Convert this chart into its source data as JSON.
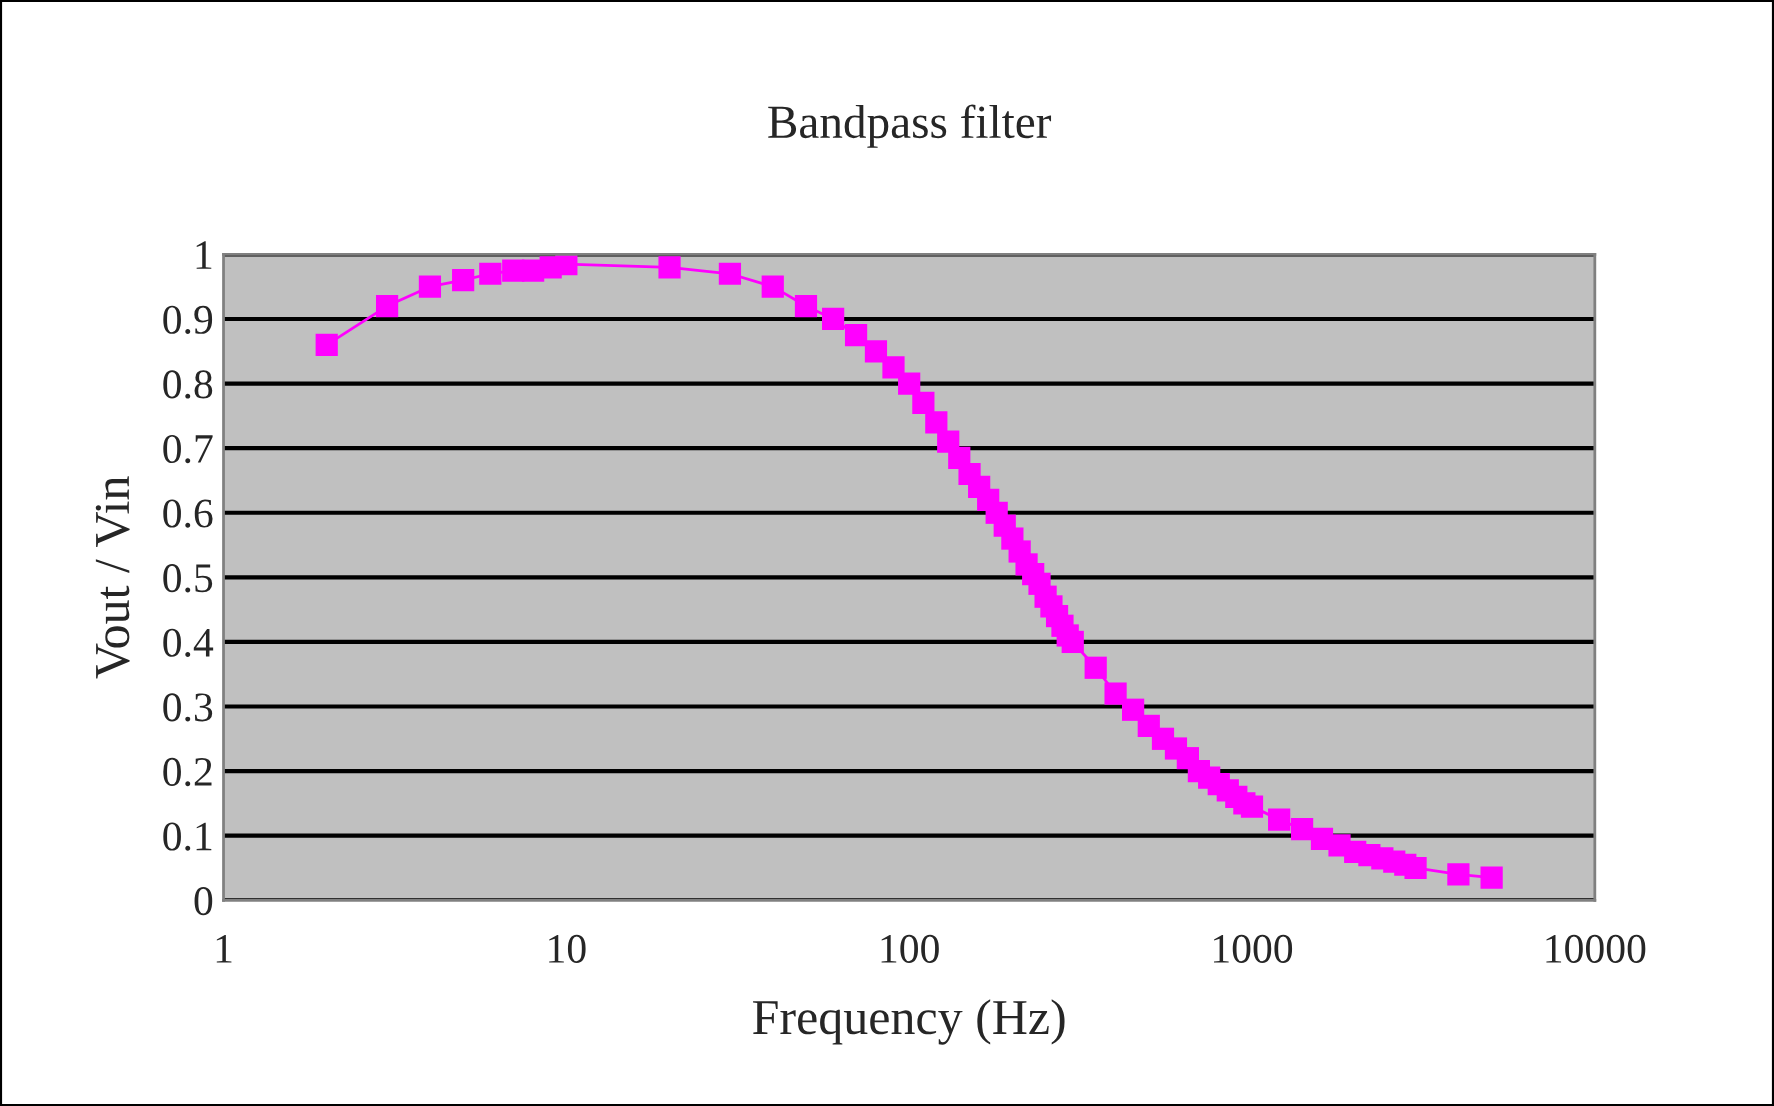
{
  "chart_data": {
    "type": "line",
    "title": "Bandpass filter",
    "xlabel": "Frequency (Hz)",
    "ylabel": "Vout / Vin",
    "x": [
      2,
      3,
      4,
      5,
      6,
      7,
      8,
      9,
      10,
      20,
      30,
      40,
      50,
      60,
      70,
      80,
      90,
      100,
      110,
      120,
      130,
      140,
      150,
      160,
      170,
      180,
      190,
      200,
      210,
      220,
      230,
      240,
      250,
      260,
      270,
      280,
      290,
      300,
      350,
      400,
      450,
      500,
      550,
      600,
      650,
      700,
      750,
      800,
      850,
      900,
      950,
      1000,
      1200,
      1400,
      1600,
      1800,
      2000,
      2200,
      2400,
      2600,
      2800,
      3000,
      4000,
      5000
    ],
    "series": [
      {
        "color": "#ff00ff",
        "values": [
          0.86,
          0.92,
          0.95,
          0.96,
          0.97,
          0.975,
          0.975,
          0.98,
          0.985,
          0.98,
          0.97,
          0.95,
          0.92,
          0.9,
          0.875,
          0.85,
          0.825,
          0.8,
          0.77,
          0.74,
          0.71,
          0.685,
          0.66,
          0.64,
          0.62,
          0.6,
          0.58,
          0.56,
          0.54,
          0.52,
          0.505,
          0.49,
          0.47,
          0.455,
          0.44,
          0.425,
          0.41,
          0.4,
          0.36,
          0.32,
          0.295,
          0.27,
          0.25,
          0.235,
          0.22,
          0.2,
          0.19,
          0.18,
          0.17,
          0.16,
          0.15,
          0.145,
          0.125,
          0.11,
          0.095,
          0.085,
          0.075,
          0.07,
          0.065,
          0.06,
          0.055,
          0.05,
          0.04,
          0.035
        ]
      }
    ],
    "log": "x",
    "xlim": [
      1,
      10000
    ],
    "xticks": [
      1,
      10,
      100,
      1000,
      10000
    ],
    "ylim": [
      0,
      1
    ],
    "yticks": [
      0,
      0.1,
      0.2,
      0.3,
      0.4,
      0.5,
      0.6,
      0.7,
      0.8,
      0.9,
      1
    ],
    "grid": "y",
    "marker": "square",
    "line_style": "solid"
  }
}
